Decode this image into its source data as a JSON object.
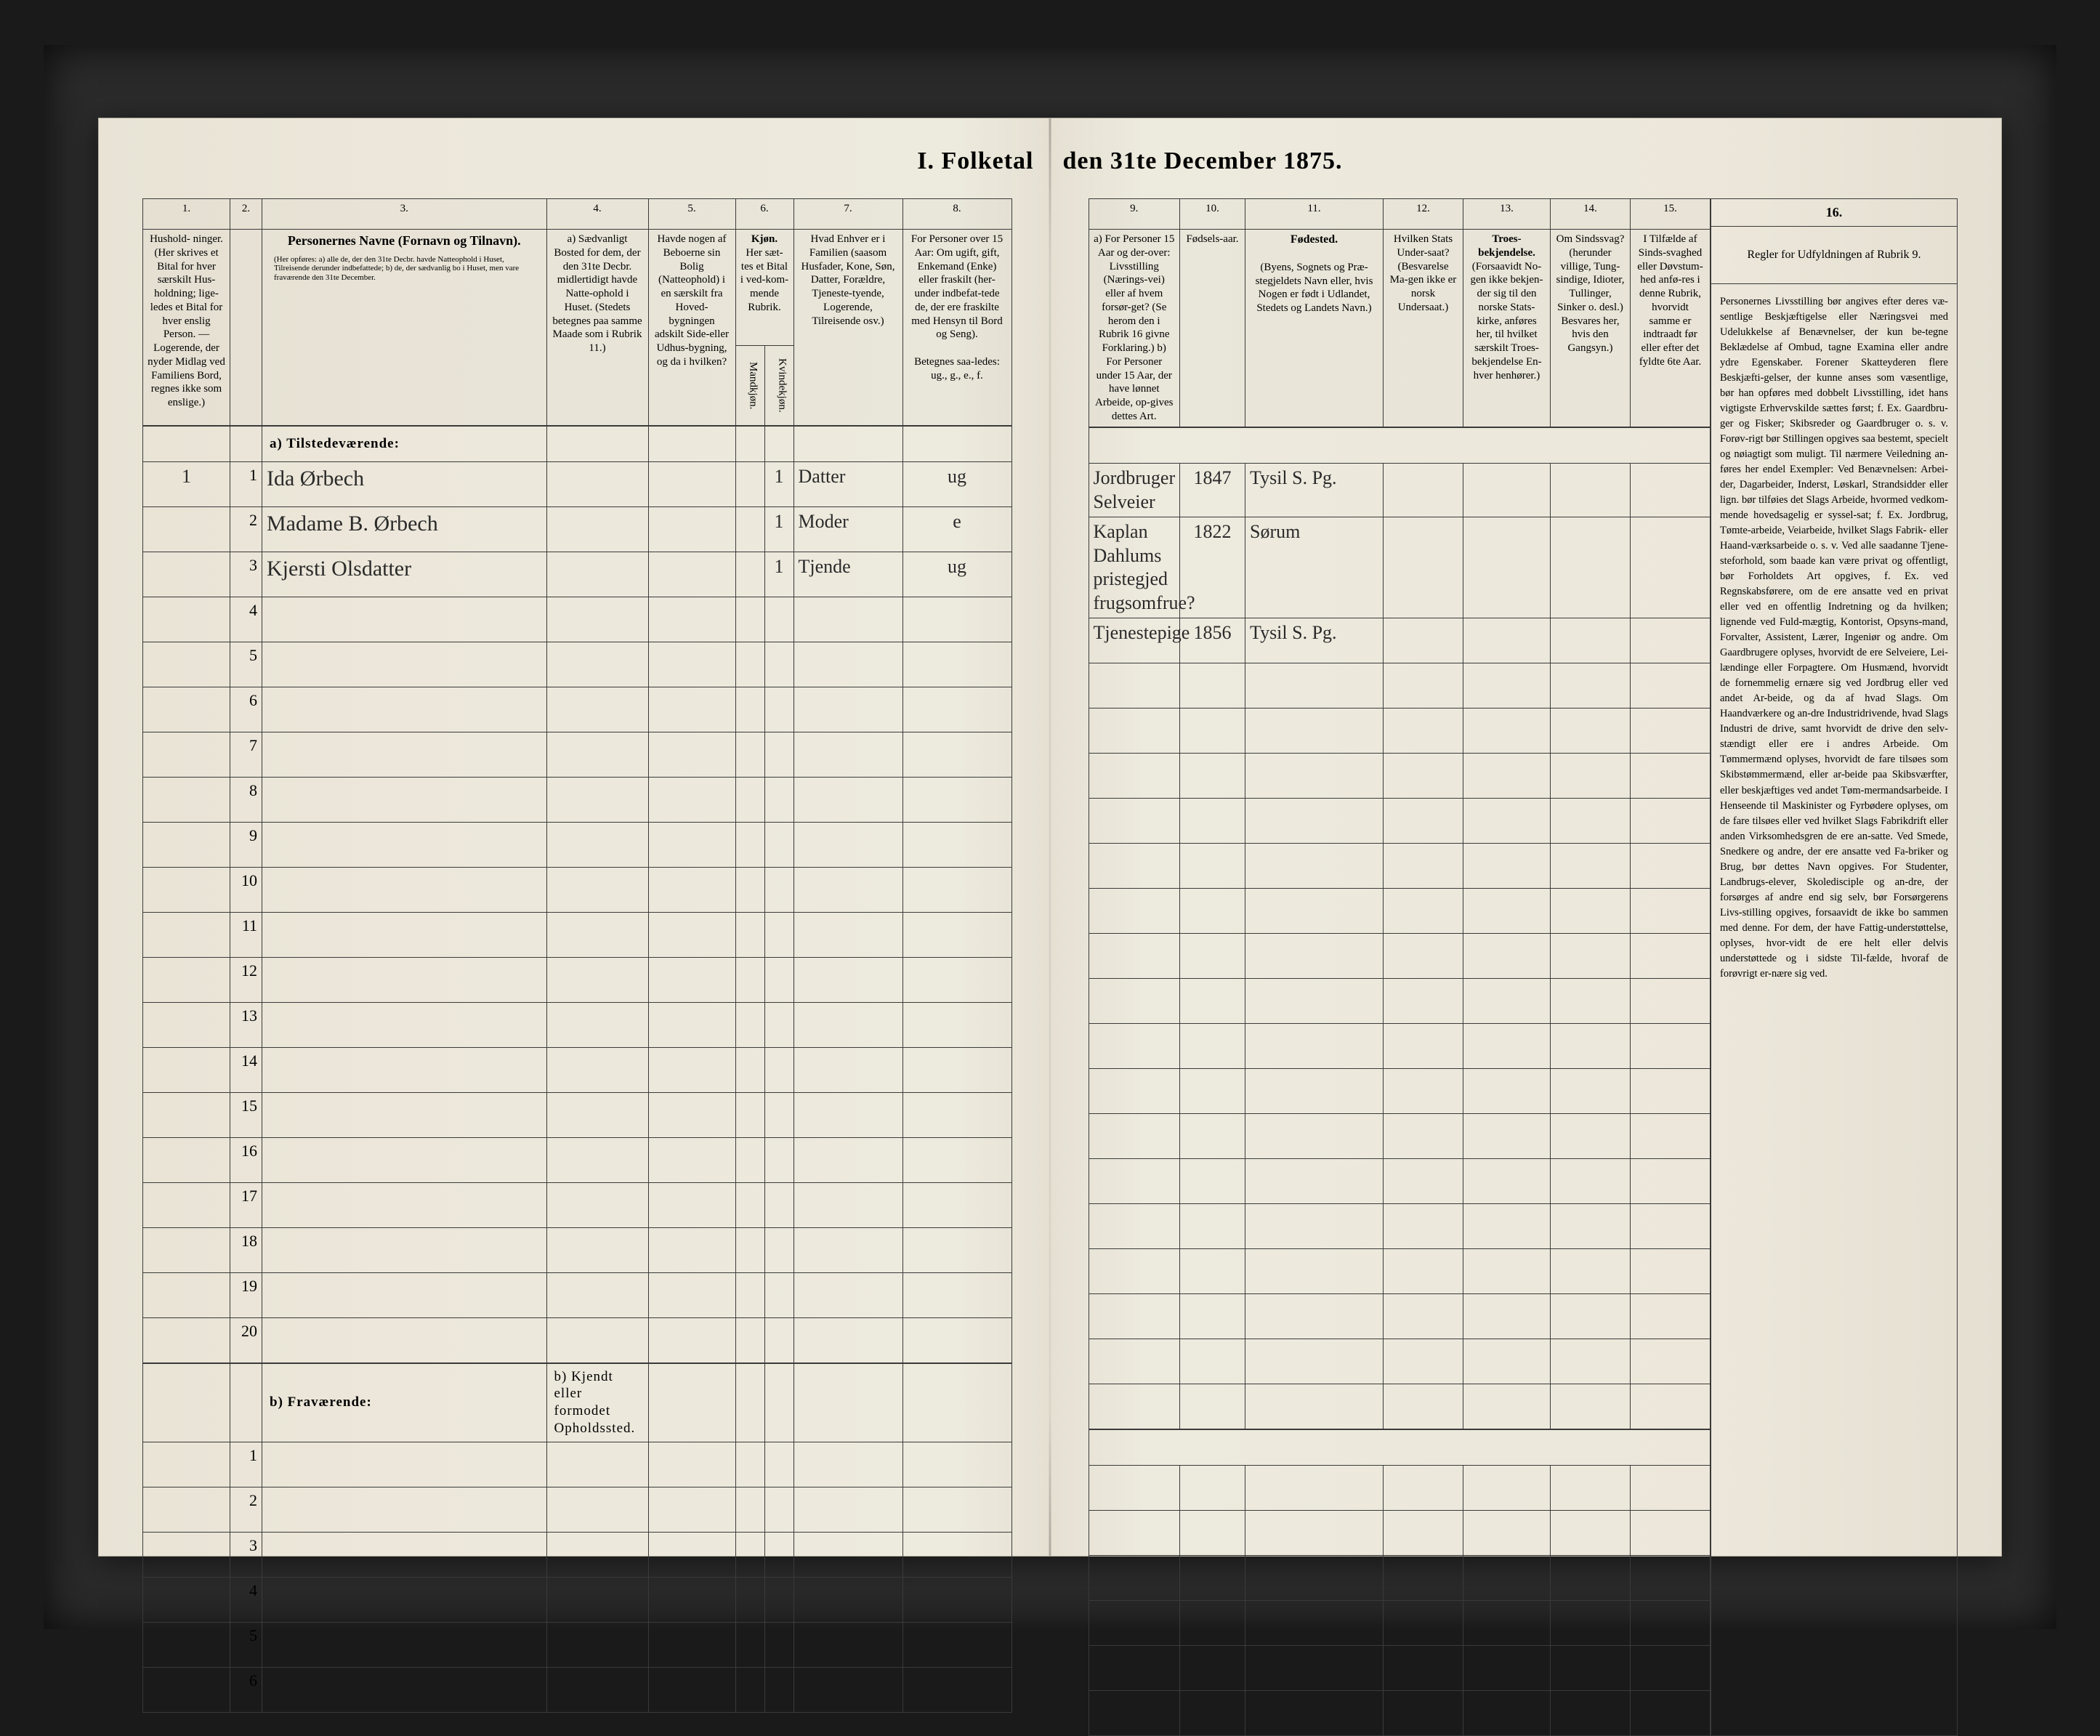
{
  "title": {
    "left": "I.  Folketal",
    "right": "den 31te December 1875."
  },
  "left": {
    "colnums": [
      "1.",
      "2.",
      "3.",
      "4.",
      "5.",
      "6.",
      "7.",
      "8."
    ],
    "headers": {
      "c1": "Hushold-\nninger.\n(Her skrives et Bital for hver særskilt Hus-holdning; lige-ledes et Bital for hver enslig Person.\n— Logerende, der nyder Midlag ved Familiens Bord, regnes ikke som enslige.)",
      "c2": "",
      "c3_title": "Personernes Navne (Fornavn og Tilnavn).",
      "c3_sub": "(Her opføres:\na) alle de, der den 31te Decbr. havde Natteophold i Huset, Tilreisende derunder indbefattede;\nb) de, der sædvanlig bo i Huset, men vare fraværende den 31te December.",
      "c4": "a) Sædvanligt Bosted for dem, der den 31te Decbr. midlertidigt havde Natte-ophold i Huset.\n(Stedets betegnes paa samme Maade som i Rubrik 11.)",
      "c5": "Havde nogen af Beboerne sin Bolig (Natteophold) i en særskilt fra Hoved-bygningen adskilt Side-eller Udhus-bygning, og da i hvilken?",
      "c6_top": "Kjøn.",
      "c6_sub": "Her sæt-tes et Bital i ved-kom-mende Rubrik.",
      "c6a": "Mandkjøn.",
      "c6b": "Kvindekjøn.",
      "c7": "Hvad Enhver er i Familien (saasom Husfader, Kone, Søn, Datter, Forældre, Tjeneste-tyende, Logerende, Tilreisende osv.)",
      "c8_top": "For Personer over 15 Aar:\nOm ugift, gift, Enkemand (Enke) eller fraskilt (her-under indbefat-tede de, der ere fraskilte med Hensyn til Bord og Seng).",
      "c8_sub": "Betegnes saa-ledes:\nug., g., e., f."
    },
    "section_a": "a) Tilstedeværende:",
    "section_b": "b) Fraværende:",
    "section_b_c4": "b) Kjendt eller formodet Opholdssted.",
    "rows_a": [
      {
        "n": "1",
        "c1": "1",
        "name": "Ida Ørbech",
        "k": "1",
        "fam": "Datter",
        "ms": "ug"
      },
      {
        "n": "2",
        "c1": "",
        "name": "Madame B. Ørbech",
        "k": "1",
        "fam": "Moder",
        "ms": "e"
      },
      {
        "n": "3",
        "c1": "",
        "name": "Kjersti Olsdatter",
        "k": "1",
        "fam": "Tjende",
        "ms": "ug"
      },
      {
        "n": "4"
      },
      {
        "n": "5"
      },
      {
        "n": "6"
      },
      {
        "n": "7"
      },
      {
        "n": "8"
      },
      {
        "n": "9"
      },
      {
        "n": "10"
      },
      {
        "n": "11"
      },
      {
        "n": "12"
      },
      {
        "n": "13"
      },
      {
        "n": "14"
      },
      {
        "n": "15"
      },
      {
        "n": "16"
      },
      {
        "n": "17"
      },
      {
        "n": "18"
      },
      {
        "n": "19"
      },
      {
        "n": "20"
      }
    ],
    "rows_b": [
      {
        "n": "1"
      },
      {
        "n": "2"
      },
      {
        "n": "3"
      },
      {
        "n": "4"
      },
      {
        "n": "5"
      },
      {
        "n": "6"
      }
    ]
  },
  "right": {
    "colnums": [
      "9.",
      "10.",
      "11.",
      "12.",
      "13.",
      "14.",
      "15.",
      "16."
    ],
    "headers": {
      "c9": "a) For Personer 15 Aar og der-over: Livsstilling (Nærings-vei) eller af hvem forsør-get? (Se herom den i Rubrik 16 givne Forklaring.)\nb) For Personer under 15 Aar, der have lønnet Arbeide, op-gives dettes Art.",
      "c10": "Fødsels-aar.",
      "c11_top": "Fødested.",
      "c11_sub": "(Byens, Sognets og Præ-stegjeldets Navn eller, hvis Nogen er født i Udlandet, Stedets og Landets Navn.)",
      "c12": "Hvilken Stats Under-saat?\n(Besvarelse Ma-gen ikke er norsk Undersaat.)",
      "c13_top": "Troes-bekjendelse.",
      "c13_sub": "(Forsaavidt No-gen ikke bekjen-der sig til den norske Stats-kirke, anføres her, til hvilket særskilt Troes-bekjendelse En-hver henhører.)",
      "c14": "Om Sindssvag? (herunder villige, Tung-sindige, Idioter, Tullinger, Sinker o. desl.) Besvares her, hvis den Gangsyn.)",
      "c15": "I Tilfælde af Sinds-svaghed eller Døvstum-hed anfø-res i denne Rubrik, hvorvidt samme er indtraadt før eller efter det fyldte 6te Aar.",
      "c16": "Regler for Udfyldningen\naf\nRubrik 9."
    },
    "rows": [
      {
        "occ": "Jordbruger\nSelveier",
        "yr": "1847",
        "bp": "Tysil S. Pg."
      },
      {
        "occ": "Kaplan Dahlums pristegjed\nfrugsomfrue?",
        "yr": "1822",
        "bp": "Sørum"
      },
      {
        "occ": "Tjenestepige",
        "yr": "1856",
        "bp": "Tysil S. Pg."
      },
      {},
      {},
      {},
      {},
      {},
      {},
      {},
      {},
      {},
      {},
      {},
      {},
      {},
      {},
      {},
      {},
      {}
    ],
    "rows_b": [
      {},
      {},
      {},
      {},
      {},
      {}
    ],
    "rules_text": "Personernes Livsstilling bør angives efter deres væ-sentlige Beskjæftigelse eller Næringsvei med Udelukkelse af Benævnelser, der kun be-tegne Beklædelse af Ombud, tagne Examina eller andre ydre Egenskaber. Forener Skatteyderen flere Beskjæfti-gelser, der kunne anses som væsentlige, bør han opføres med dobbelt Livsstilling, idet hans vigtigste Erhvervskilde sættes først; f. Ex. Gaardbru-ger og Fisker; Skibsreder og Gaardbruger o. s. v. Forøv-rigt bør Stillingen opgives saa bestemt, specielt og nøiagtigt som muligt.\n\nTil nærmere Veiledning an-føres her endel Exempler:\n\nVed Benævnelsen: Arbei-der, Dagarbeider, Inderst, Løskarl, Strandsidder eller lign. bør tilføies det Slags Arbeide, hvormed vedkom-mende hovedsagelig er syssel-sat; f. Ex. Jordbrug, Tømte-arbeide, Veiarbeide, hvilket Slags Fabrik- eller Haand-værksarbeide o. s. v.\n\nVed alle saadanne Tjene-steforhold, som baade kan være privat og offentligt, bør Forholdets Art opgives, f. Ex. ved Regnskabsførere, om de ere ansatte ved en privat eller ved en offentlig Indretning og da hvilken; lignende ved Fuld-mægtig, Kontorist, Opsyns-mand, Forvalter, Assistent, Lærer, Ingeniør og andre.\n\nOm Gaardbrugere oplyses, hvorvidt de ere Selveiere, Lei-lændinge eller Forpagtere.\n\nOm Husmænd, hvorvidt de fornemmelig ernære sig ved Jordbrug eller ved andet Ar-beide, og da af hvad Slags.\n\nOm Haandværkere og an-dre Industridrivende, hvad Slags Industri de drive, samt hvorvidt de drive den selv-stændigt eller ere i andres Arbeide.\n\nOm Tømmermænd oplyses, hvorvidt de fare tilsøes som Skibstømmermænd, eller ar-beide paa Skibsværfter, eller beskjæftiges ved andet Tøm-mermandsarbeide.\n\nI Henseende til Maskinister og Fyrbødere oplyses, om de fare tilsøes eller ved hvilket Slags Fabrikdrift eller anden Virksomhedsgren de ere an-satte.\n\nVed Smede, Snedkere og andre, der ere ansatte ved Fa-briker og Brug, bør dettes Navn opgives.\n\nFor Studenter, Landbrugs-elever, Skoledisciple og an-dre, der forsørges af andre end sig selv, bør Forsørgerens Livs-stilling opgives, forsaavidt de ikke bo sammen med denne.\n\nFor dem, der have Fattig-understøttelse, oplyses, hvor-vidt de ere helt eller delvis understøttede og i sidste Til-fælde, hvoraf de forøvrigt er-nære sig ved."
  },
  "style": {
    "paper": "#ece7da",
    "ink": "#2a2a2a",
    "rule": "#3a3a3a",
    "script_font": "cursive"
  }
}
